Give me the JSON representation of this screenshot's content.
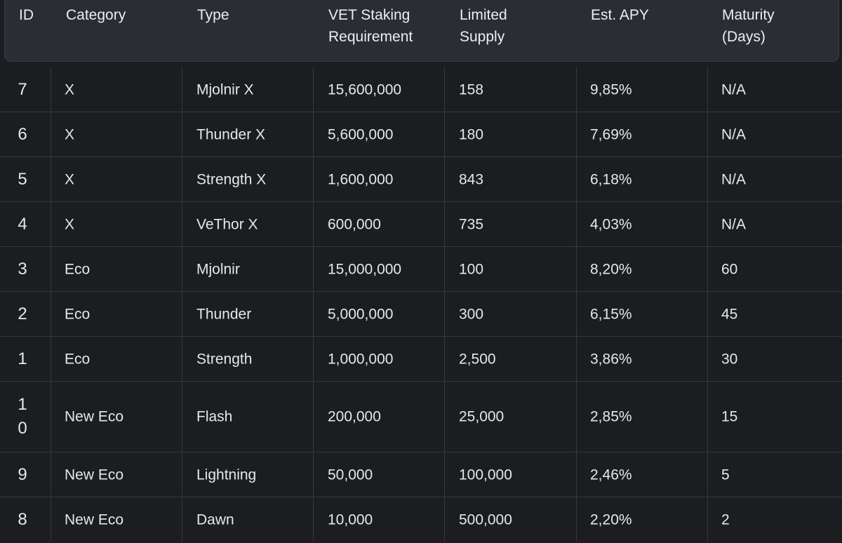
{
  "table": {
    "columns": [
      "ID",
      "Category",
      "Type",
      "VET Staking\nRequirement",
      "Limited\nSupply",
      "Est. APY",
      "Maturity\n(Days)"
    ],
    "rows": [
      [
        "7",
        "X",
        "Mjolnir X",
        "15,600,000",
        "158",
        "9,85%",
        "N/A"
      ],
      [
        "6",
        "X",
        "Thunder X",
        "5,600,000",
        "180",
        "7,69%",
        "N/A"
      ],
      [
        "5",
        "X",
        "Strength X",
        "1,600,000",
        "843",
        "6,18%",
        "N/A"
      ],
      [
        "4",
        "X",
        "VeThor X",
        "600,000",
        "735",
        "4,03%",
        "N/A"
      ],
      [
        "3",
        "Eco",
        "Mjolnir",
        "15,000,000",
        "100",
        "8,20%",
        "60"
      ],
      [
        "2",
        "Eco",
        "Thunder",
        "5,000,000",
        "300",
        "6,15%",
        "45"
      ],
      [
        "1",
        "Eco",
        "Strength",
        "1,000,000",
        "2,500",
        "3,86%",
        "30"
      ],
      [
        "10",
        "New Eco",
        "Flash",
        "200,000",
        "25,000",
        "2,85%",
        "15"
      ],
      [
        "9",
        "New Eco",
        "Lightning",
        "50,000",
        "100,000",
        "2,46%",
        "5"
      ],
      [
        "8",
        "New Eco",
        "Dawn",
        "10,000",
        "500,000",
        "2,20%",
        "2"
      ]
    ]
  }
}
